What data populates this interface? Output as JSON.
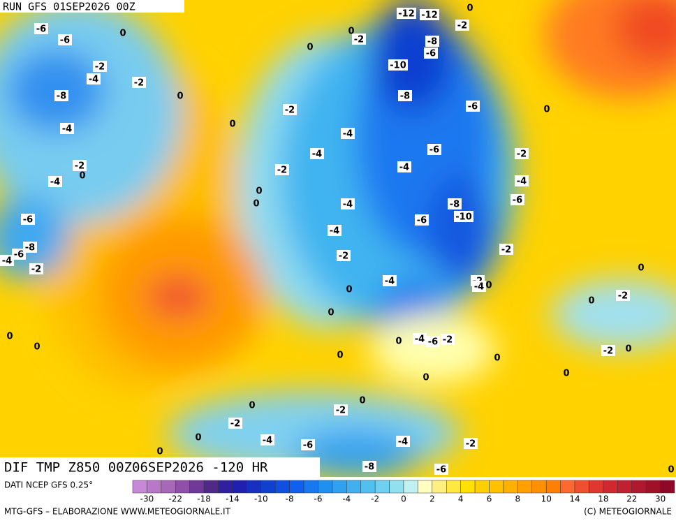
{
  "header": {
    "run": "RUN GFS 01SEP2026 00Z",
    "product": "DIF TMP Z850 00Z06SEP2026 -120 HR"
  },
  "map": {
    "contour_labels": [
      -12,
      -12,
      0,
      -2,
      -6,
      -6,
      0,
      0,
      -2,
      -8,
      0,
      -6,
      -2,
      -10,
      -4,
      -2,
      -8,
      0,
      -8,
      -2,
      -6,
      0,
      0,
      -4,
      -4,
      -6,
      -4,
      -2,
      -2,
      -4,
      -2,
      0,
      -4,
      -4,
      0,
      -6,
      0,
      -4,
      -8,
      -10,
      -6,
      -6,
      -4,
      -8,
      -2,
      -6,
      -4,
      -2,
      -2,
      0,
      -4,
      -2,
      -4,
      0,
      0,
      0,
      -2,
      0,
      0,
      0,
      0,
      -4,
      -6,
      -2,
      -2,
      0,
      0,
      0,
      0,
      0,
      0,
      0,
      -2,
      -2,
      0,
      -4,
      -6,
      -4,
      -2,
      0,
      -8,
      -6,
      0
    ]
  },
  "legend": {
    "colors": [
      "#c888d8",
      "#b878c8",
      "#a868b8",
      "#9050a8",
      "#703898",
      "#502888",
      "#3020a0",
      "#2020b0",
      "#1830c0",
      "#1040d0",
      "#1050e0",
      "#1060f0",
      "#1878f0",
      "#2090f0",
      "#30a0f0",
      "#40b0f0",
      "#50c0f0",
      "#70d0f0",
      "#90e0f0",
      "#c0f0f0",
      "#ffffc0",
      "#fff080",
      "#ffe840",
      "#ffe000",
      "#ffd000",
      "#ffc000",
      "#ffb000",
      "#ffa000",
      "#ff9000",
      "#ff8000",
      "#ff6830",
      "#f05030",
      "#e03830",
      "#d02830",
      "#c02030",
      "#b01830",
      "#a01028",
      "#900828"
    ],
    "ticks": [
      -30,
      -22,
      -18,
      -14,
      -10,
      -8,
      -6,
      -4,
      -2,
      0,
      2,
      4,
      6,
      8,
      10,
      14,
      18,
      22,
      30
    ]
  },
  "footer": {
    "source": "DATI NCEP GFS 0.25°",
    "credit": "MTG-GFS – ELABORAZIONE WWW.METEOGIORNALE.IT",
    "copyright": "(C) METEOGIORNALE"
  }
}
